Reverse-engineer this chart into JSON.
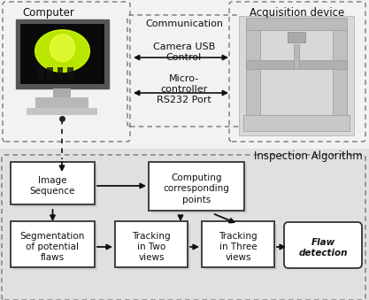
{
  "bg_color": "#ffffff",
  "top_bg": "#f0f0f0",
  "bottom_bg": "#d8d8d8",
  "box_fc": "#ffffff",
  "box_ec": "#333333",
  "dash_color": "#666666",
  "arrow_color": "#111111",
  "text_color": "#111111",
  "top_label_computer": "Computer",
  "top_label_acquisition": "Acquisition device",
  "comm_label": "Communication",
  "comm_line1a": "Camera USB",
  "comm_line1b": "Control",
  "comm_line2a": "Micro-",
  "comm_line2b": "controller",
  "comm_line2c": "RS232 Port",
  "bottom_label": "Inspection Algorithm",
  "box1_text": "Image\nSequence",
  "box2_text": "Computing\ncorresponding\npoints",
  "box3_text": "Segmentation\nof potential\nflaws",
  "box4_text": "Tracking\nin Two\nviews",
  "box5_text": "Tracking\nin Three\nviews",
  "box6_text": "Flaw\ndetection",
  "figsize": [
    4.17,
    3.39
  ],
  "dpi": 100
}
